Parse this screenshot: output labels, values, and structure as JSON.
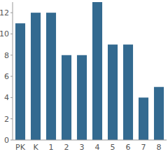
{
  "chart_data": {
    "type": "bar",
    "categories": [
      "PK",
      "K",
      "1",
      "2",
      "3",
      "4",
      "5",
      "6",
      "7",
      "8"
    ],
    "values": [
      11,
      12,
      12,
      8,
      8,
      13,
      9,
      9,
      4,
      5
    ],
    "color": "#336a90",
    "ylim": [
      0,
      13
    ],
    "yticks": [
      0,
      2,
      4,
      6,
      8,
      10,
      12
    ],
    "grid": false
  }
}
